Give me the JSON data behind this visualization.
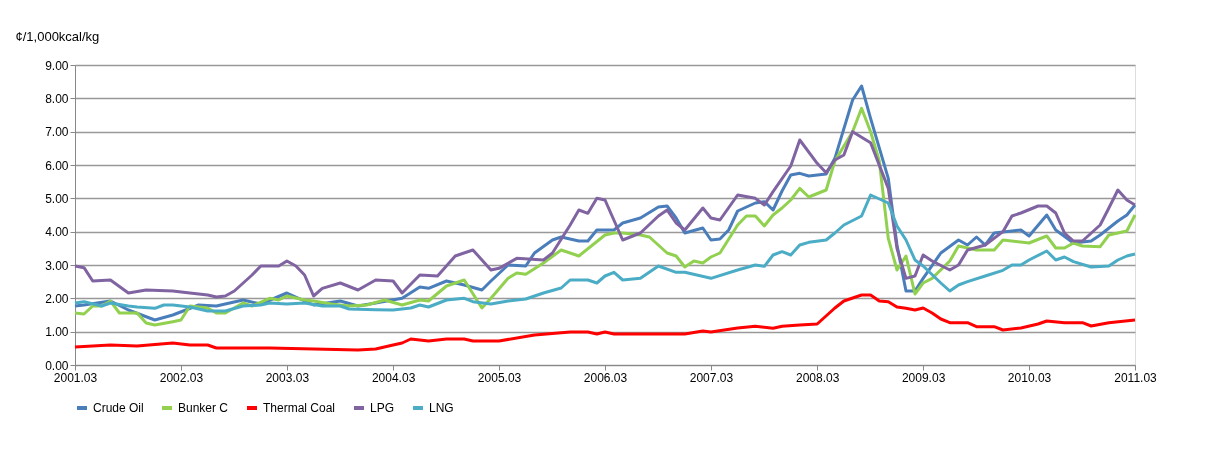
{
  "chart_data": {
    "type": "line",
    "ylabel": "¢/1,000kcal/kg",
    "xlim": [
      "2001-03",
      "2011-03"
    ],
    "xticks": [
      {
        "value": "2001-03",
        "label": "2001.03"
      },
      {
        "value": "2002-03",
        "label": "2002.03"
      },
      {
        "value": "2003-03",
        "label": "2003.03"
      },
      {
        "value": "2004-03",
        "label": "2004.03"
      },
      {
        "value": "2005-03",
        "label": "2005.03"
      },
      {
        "value": "2006-03",
        "label": "2006.03"
      },
      {
        "value": "2007-03",
        "label": "2007.03"
      },
      {
        "value": "2008-03",
        "label": "2008.03"
      },
      {
        "value": "2009-03",
        "label": "2009.03"
      },
      {
        "value": "2010-03",
        "label": "2010.03"
      },
      {
        "value": "2011-03",
        "label": "2011.03"
      }
    ],
    "ylim": [
      0,
      9
    ],
    "yticks": [
      {
        "value": 0,
        "label": "0.00"
      },
      {
        "value": 1,
        "label": "1.00"
      },
      {
        "value": 2,
        "label": "2.00"
      },
      {
        "value": 3,
        "label": "3.00"
      },
      {
        "value": 4,
        "label": "4.00"
      },
      {
        "value": 5,
        "label": "5.00"
      },
      {
        "value": 6,
        "label": "6.00"
      },
      {
        "value": 7,
        "label": "7.00"
      },
      {
        "value": 8,
        "label": "8.00"
      },
      {
        "value": 9,
        "label": "9.00"
      }
    ],
    "grid": "y",
    "legend": "bottom",
    "marker": "none",
    "line_style": "solid",
    "series": [
      {
        "name": "Crude Oil",
        "color": "#4a7ebb",
        "x": [
          "2001-03",
          "2001-04",
          "2001-07",
          "2001-09",
          "2001-12",
          "2002-02",
          "2002-05",
          "2002-07",
          "2002-10",
          "2002-12",
          "2003-03",
          "2003-06",
          "2003-09",
          "2003-11",
          "2004-01",
          "2004-04",
          "2004-06",
          "2004-07",
          "2004-09",
          "2004-11",
          "2005-01",
          "2005-02",
          "2005-04",
          "2005-06",
          "2005-07",
          "2005-09",
          "2005-10",
          "2005-12",
          "2006-01",
          "2006-02",
          "2006-04",
          "2006-05",
          "2006-07",
          "2006-09",
          "2006-10",
          "2006-11",
          "2006-12",
          "2007-02",
          "2007-03",
          "2007-04",
          "2007-05",
          "2007-06",
          "2007-08",
          "2007-09",
          "2007-10",
          "2007-11",
          "2007-12",
          "2008-01",
          "2008-02",
          "2008-04",
          "2008-05",
          "2008-07",
          "2008-08",
          "2008-09",
          "2008-11",
          "2008-12",
          "2009-01",
          "2009-02",
          "2009-03",
          "2009-05",
          "2009-07",
          "2009-08",
          "2009-09",
          "2009-10",
          "2009-11",
          "2010-01",
          "2010-02",
          "2010-03",
          "2010-05",
          "2010-06",
          "2010-08",
          "2010-10",
          "2010-11",
          "2011-01",
          "2011-02",
          "2011-03"
        ],
        "values": [
          1.77,
          1.8,
          1.92,
          1.65,
          1.35,
          1.5,
          1.8,
          1.77,
          1.95,
          1.83,
          2.16,
          1.8,
          1.92,
          1.77,
          1.86,
          2.0,
          2.34,
          2.3,
          2.52,
          2.4,
          2.25,
          2.52,
          3.0,
          2.97,
          3.36,
          3.75,
          3.84,
          3.72,
          3.72,
          4.05,
          4.05,
          4.26,
          4.41,
          4.74,
          4.77,
          4.41,
          3.96,
          4.11,
          3.75,
          3.78,
          4.05,
          4.62,
          4.86,
          4.9,
          4.65,
          5.22,
          5.7,
          5.75,
          5.67,
          5.73,
          6.2,
          7.95,
          8.37,
          7.4,
          5.6,
          3.6,
          2.22,
          2.22,
          2.6,
          3.36,
          3.75,
          3.6,
          3.84,
          3.6,
          3.96,
          4.02,
          4.05,
          3.87,
          4.5,
          4.05,
          3.66,
          3.72,
          3.9,
          4.32,
          4.5,
          4.8
        ]
      },
      {
        "name": "Bunker C",
        "color": "#92d050",
        "x": [
          "2001-03",
          "2001-04",
          "2001-05",
          "2001-06",
          "2001-07",
          "2001-08",
          "2001-10",
          "2001-11",
          "2001-12",
          "2002-02",
          "2002-03",
          "2002-04",
          "2002-06",
          "2002-07",
          "2002-08",
          "2002-10",
          "2002-11",
          "2003-01",
          "2003-02",
          "2003-03",
          "2003-05",
          "2003-06",
          "2003-08",
          "2003-10",
          "2003-12",
          "2004-02",
          "2004-04",
          "2004-06",
          "2004-07",
          "2004-09",
          "2004-11",
          "2005-01",
          "2005-02",
          "2005-04",
          "2005-05",
          "2005-06",
          "2005-08",
          "2005-10",
          "2005-12",
          "2006-03",
          "2006-04",
          "2006-05",
          "2006-07",
          "2006-08",
          "2006-10",
          "2006-11",
          "2006-12",
          "2007-01",
          "2007-02",
          "2007-03",
          "2007-04",
          "2007-06",
          "2007-07",
          "2007-08",
          "2007-09",
          "2007-10",
          "2007-11",
          "2007-12",
          "2008-01",
          "2008-02",
          "2008-04",
          "2008-05",
          "2008-07",
          "2008-08",
          "2008-09",
          "2008-10",
          "2008-11",
          "2008-12",
          "2009-01",
          "2009-02",
          "2009-03",
          "2009-04",
          "2009-06",
          "2009-07",
          "2009-09",
          "2009-11",
          "2009-12",
          "2010-03",
          "2010-05",
          "2010-06",
          "2010-07",
          "2010-08",
          "2010-09",
          "2010-11",
          "2010-12",
          "2011-02",
          "2011-03"
        ],
        "values": [
          1.56,
          1.53,
          1.77,
          1.77,
          1.92,
          1.56,
          1.56,
          1.26,
          1.2,
          1.3,
          1.35,
          1.77,
          1.71,
          1.56,
          1.56,
          1.86,
          1.77,
          2.0,
          1.95,
          2.07,
          1.95,
          1.92,
          1.83,
          1.77,
          1.8,
          1.95,
          1.8,
          1.95,
          1.92,
          2.37,
          2.55,
          1.71,
          2.0,
          2.6,
          2.76,
          2.72,
          3.06,
          3.45,
          3.27,
          3.9,
          3.96,
          3.96,
          3.9,
          3.84,
          3.36,
          3.27,
          2.94,
          3.12,
          3.06,
          3.24,
          3.36,
          4.2,
          4.47,
          4.47,
          4.17,
          4.5,
          4.71,
          4.95,
          5.3,
          5.04,
          5.25,
          6.12,
          7.0,
          7.7,
          7.0,
          6.12,
          3.8,
          2.85,
          3.27,
          2.13,
          2.46,
          2.6,
          3.12,
          3.57,
          3.45,
          3.45,
          3.75,
          3.66,
          3.87,
          3.51,
          3.51,
          3.66,
          3.57,
          3.55,
          3.9,
          4.02,
          4.5
        ]
      },
      {
        "name": "Thermal Coal",
        "color": "#ff0000",
        "x": [
          "2001-03",
          "2001-07",
          "2001-10",
          "2002-02",
          "2002-04",
          "2002-06",
          "2002-07",
          "2003-01",
          "2003-11",
          "2004-01",
          "2004-03",
          "2004-04",
          "2004-05",
          "2004-07",
          "2004-09",
          "2004-11",
          "2004-12",
          "2005-03",
          "2005-07",
          "2005-11",
          "2006-01",
          "2006-02",
          "2006-03",
          "2006-04",
          "2006-12",
          "2007-02",
          "2007-03",
          "2007-06",
          "2007-08",
          "2007-10",
          "2007-11",
          "2008-01",
          "2008-03",
          "2008-05",
          "2008-06",
          "2008-08",
          "2008-09",
          "2008-10",
          "2008-11",
          "2008-12",
          "2009-01",
          "2009-02",
          "2009-03",
          "2009-04",
          "2009-05",
          "2009-06",
          "2009-08",
          "2009-09",
          "2009-11",
          "2009-12",
          "2010-02",
          "2010-04",
          "2010-05",
          "2010-07",
          "2010-09",
          "2010-10",
          "2010-12",
          "2011-03"
        ],
        "values": [
          0.54,
          0.6,
          0.57,
          0.66,
          0.6,
          0.6,
          0.51,
          0.51,
          0.45,
          0.48,
          0.6,
          0.66,
          0.78,
          0.72,
          0.78,
          0.78,
          0.72,
          0.72,
          0.9,
          0.99,
          0.99,
          0.93,
          0.99,
          0.93,
          0.93,
          1.02,
          0.99,
          1.11,
          1.16,
          1.1,
          1.16,
          1.2,
          1.23,
          1.71,
          1.92,
          2.1,
          2.1,
          1.92,
          1.9,
          1.74,
          1.7,
          1.65,
          1.71,
          1.56,
          1.38,
          1.27,
          1.27,
          1.15,
          1.15,
          1.05,
          1.11,
          1.23,
          1.32,
          1.27,
          1.27,
          1.17,
          1.27,
          1.35
        ]
      },
      {
        "name": "LPG",
        "color": "#8064a2",
        "x": [
          "2001-03",
          "2001-04",
          "2001-05",
          "2001-07",
          "2001-09",
          "2001-11",
          "2002-02",
          "2002-04",
          "2002-06",
          "2002-07",
          "2002-08",
          "2002-09",
          "2002-11",
          "2002-12",
          "2003-02",
          "2003-03",
          "2003-04",
          "2003-05",
          "2003-06",
          "2003-07",
          "2003-09",
          "2003-11",
          "2004-01",
          "2004-03",
          "2004-04",
          "2004-06",
          "2004-08",
          "2004-10",
          "2004-12",
          "2005-01",
          "2005-02",
          "2005-03",
          "2005-05",
          "2005-08",
          "2005-09",
          "2005-11",
          "2005-12",
          "2006-01",
          "2006-02",
          "2006-03",
          "2006-05",
          "2006-07",
          "2006-09",
          "2006-10",
          "2006-11",
          "2006-12",
          "2007-02",
          "2007-03",
          "2007-04",
          "2007-06",
          "2007-08",
          "2007-09",
          "2007-10",
          "2007-12",
          "2008-01",
          "2008-03",
          "2008-04",
          "2008-05",
          "2008-06",
          "2008-07",
          "2008-09",
          "2008-11",
          "2008-12",
          "2009-01",
          "2009-02",
          "2009-03",
          "2009-04",
          "2009-06",
          "2009-07",
          "2009-08",
          "2009-10",
          "2009-12",
          "2010-01",
          "2010-02",
          "2010-04",
          "2010-05",
          "2010-06",
          "2010-07",
          "2010-08",
          "2010-09",
          "2010-11",
          "2010-12",
          "2011-01",
          "2011-02",
          "2011-03"
        ],
        "values": [
          2.97,
          2.92,
          2.52,
          2.55,
          2.16,
          2.25,
          2.22,
          2.16,
          2.1,
          2.04,
          2.07,
          2.22,
          2.7,
          2.97,
          2.97,
          3.12,
          2.97,
          2.7,
          2.07,
          2.3,
          2.46,
          2.25,
          2.55,
          2.52,
          2.16,
          2.7,
          2.67,
          3.27,
          3.45,
          3.15,
          2.85,
          2.9,
          3.2,
          3.15,
          3.36,
          4.2,
          4.65,
          4.55,
          5.0,
          4.95,
          3.75,
          3.96,
          4.47,
          4.65,
          4.26,
          4.05,
          4.71,
          4.41,
          4.35,
          5.1,
          5.0,
          4.8,
          5.2,
          5.97,
          6.75,
          6.05,
          5.77,
          6.15,
          6.3,
          7.0,
          6.67,
          5.3,
          3.5,
          2.6,
          2.67,
          3.3,
          3.12,
          2.85,
          3.0,
          3.45,
          3.6,
          4.0,
          4.47,
          4.56,
          4.77,
          4.77,
          4.56,
          3.96,
          3.72,
          3.72,
          4.2,
          4.71,
          5.25,
          4.95,
          4.8
        ]
      },
      {
        "name": "LNG",
        "color": "#4bacc6",
        "x": [
          "2001-03",
          "2001-04",
          "2001-06",
          "2001-07",
          "2001-09",
          "2001-10",
          "2001-12",
          "2002-01",
          "2002-02",
          "2002-04",
          "2002-06",
          "2002-08",
          "2002-10",
          "2002-12",
          "2003-01",
          "2003-03",
          "2003-05",
          "2003-07",
          "2003-09",
          "2003-10",
          "2004-01",
          "2004-03",
          "2004-05",
          "2004-06",
          "2004-07",
          "2004-09",
          "2004-11",
          "2004-12",
          "2005-02",
          "2005-04",
          "2005-06",
          "2005-08",
          "2005-10",
          "2005-11",
          "2006-01",
          "2006-02",
          "2006-03",
          "2006-04",
          "2006-05",
          "2006-07",
          "2006-09",
          "2006-11",
          "2006-12",
          "2007-03",
          "2007-06",
          "2007-08",
          "2007-09",
          "2007-10",
          "2007-11",
          "2007-12",
          "2008-01",
          "2008-02",
          "2008-04",
          "2008-05",
          "2008-06",
          "2008-08",
          "2008-09",
          "2008-11",
          "2008-12",
          "2009-01",
          "2009-02",
          "2009-03",
          "2009-05",
          "2009-06",
          "2009-07",
          "2009-08",
          "2009-10",
          "2009-12",
          "2010-01",
          "2010-02",
          "2010-03",
          "2010-05",
          "2010-06",
          "2010-07",
          "2010-08",
          "2010-10",
          "2010-12",
          "2011-01",
          "2011-02",
          "2011-03"
        ],
        "values": [
          1.86,
          1.9,
          1.77,
          1.86,
          1.77,
          1.74,
          1.7,
          1.8,
          1.8,
          1.74,
          1.62,
          1.62,
          1.77,
          1.8,
          1.86,
          1.83,
          1.86,
          1.77,
          1.77,
          1.68,
          1.66,
          1.65,
          1.71,
          1.8,
          1.74,
          1.95,
          2.0,
          1.9,
          1.83,
          1.92,
          1.98,
          2.16,
          2.31,
          2.55,
          2.55,
          2.46,
          2.67,
          2.78,
          2.55,
          2.6,
          2.97,
          2.78,
          2.78,
          2.6,
          2.85,
          3.0,
          2.96,
          3.3,
          3.4,
          3.3,
          3.6,
          3.68,
          3.75,
          3.96,
          4.2,
          4.47,
          5.1,
          4.86,
          4.17,
          3.75,
          3.15,
          2.97,
          2.46,
          2.22,
          2.4,
          2.5,
          2.67,
          2.84,
          3.0,
          3.0,
          3.15,
          3.42,
          3.15,
          3.24,
          3.1,
          2.94,
          2.97,
          3.15,
          3.27,
          3.33
        ]
      }
    ]
  }
}
